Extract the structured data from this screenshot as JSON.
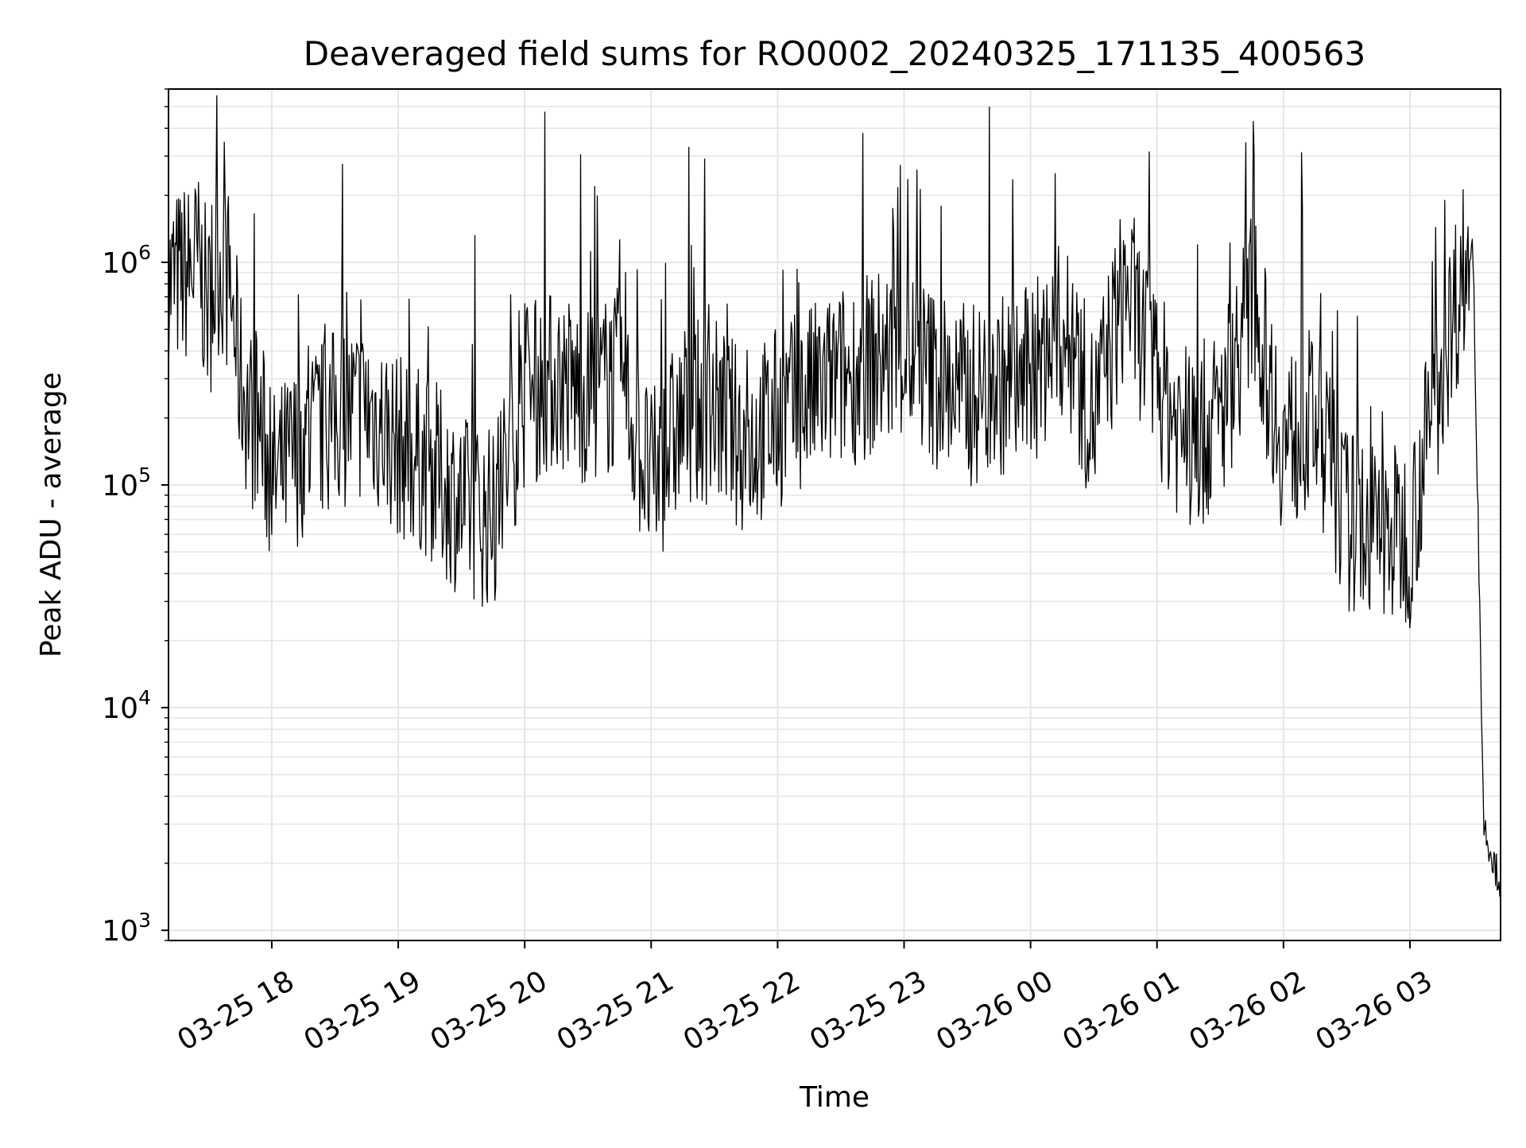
{
  "chart_data": {
    "type": "line",
    "title": "Deaveraged field sums for RO0002_20240325_171135_400563",
    "xlabel": "Time",
    "ylabel": "Peak ADU - average",
    "yscale": "log",
    "ylim": [
      900,
      6000000
    ],
    "xlim": [
      "2024-03-25 17:11",
      "2024-03-26 03:43"
    ],
    "x_ticks": [
      {
        "label": "03-25 18",
        "t": "2024-03-25 18:00"
      },
      {
        "label": "03-25 19",
        "t": "2024-03-25 19:00"
      },
      {
        "label": "03-25 20",
        "t": "2024-03-25 20:00"
      },
      {
        "label": "03-25 21",
        "t": "2024-03-25 21:00"
      },
      {
        "label": "03-25 22",
        "t": "2024-03-25 22:00"
      },
      {
        "label": "03-25 23",
        "t": "2024-03-25 23:00"
      },
      {
        "label": "03-26 00",
        "t": "2024-03-26 00:00"
      },
      {
        "label": "03-26 01",
        "t": "2024-03-26 01:00"
      },
      {
        "label": "03-26 02",
        "t": "2024-03-26 02:00"
      },
      {
        "label": "03-26 03",
        "t": "2024-03-26 03:00"
      }
    ],
    "y_ticks": [
      {
        "base": "10",
        "exp": "3",
        "value": 1000
      },
      {
        "base": "10",
        "exp": "4",
        "value": 10000
      },
      {
        "base": "10",
        "exp": "5",
        "value": 100000
      },
      {
        "base": "10",
        "exp": "6",
        "value": 1000000
      }
    ],
    "grid": true,
    "line_color": "#000000",
    "grid_color": "#e6e6e6",
    "series": [
      {
        "x": [
          "2024-03-25 17:11",
          "2024-03-25 17:20",
          "2024-03-25 17:25",
          "2024-03-25 17:30",
          "2024-03-25 17:35",
          "2024-03-25 17:40",
          "2024-03-25 17:45",
          "2024-03-25 17:50",
          "2024-03-25 17:55",
          "2024-03-25 18:00",
          "2024-03-25 18:15",
          "2024-03-25 18:30",
          "2024-03-25 18:45",
          "2024-03-25 19:00",
          "2024-03-25 19:15",
          "2024-03-25 19:30",
          "2024-03-25 19:45",
          "2024-03-25 20:00",
          "2024-03-25 20:15",
          "2024-03-25 20:30",
          "2024-03-25 20:45",
          "2024-03-25 21:00",
          "2024-03-25 21:15",
          "2024-03-25 21:30",
          "2024-03-25 21:45",
          "2024-03-25 22:00",
          "2024-03-25 22:15",
          "2024-03-25 22:30",
          "2024-03-25 22:45",
          "2024-03-25 23:00",
          "2024-03-25 23:15",
          "2024-03-25 23:30",
          "2024-03-25 23:45",
          "2024-03-26 00:00",
          "2024-03-26 00:15",
          "2024-03-26 00:30",
          "2024-03-26 00:45",
          "2024-03-26 01:00",
          "2024-03-26 01:15",
          "2024-03-26 01:30",
          "2024-03-26 01:45",
          "2024-03-26 02:00",
          "2024-03-26 02:15",
          "2024-03-26 02:30",
          "2024-03-26 02:45",
          "2024-03-26 03:00",
          "2024-03-26 03:15",
          "2024-03-26 03:25",
          "2024-03-26 03:30",
          "2024-03-26 03:35",
          "2024-03-26 03:40",
          "2024-03-26 03:43"
        ],
        "y": [
          800000,
          900000,
          1000000,
          600000,
          1000000,
          800000,
          300000,
          200000,
          180000,
          100000,
          150000,
          200000,
          220000,
          150000,
          120000,
          80000,
          70000,
          250000,
          300000,
          250000,
          300000,
          100000,
          200000,
          220000,
          150000,
          200000,
          250000,
          300000,
          350000,
          400000,
          300000,
          250000,
          280000,
          300000,
          500000,
          200000,
          800000,
          300000,
          150000,
          200000,
          700000,
          150000,
          200000,
          70000,
          60000,
          60000,
          350000,
          900000,
          1100000,
          3000,
          2000,
          1600
        ]
      }
    ]
  }
}
